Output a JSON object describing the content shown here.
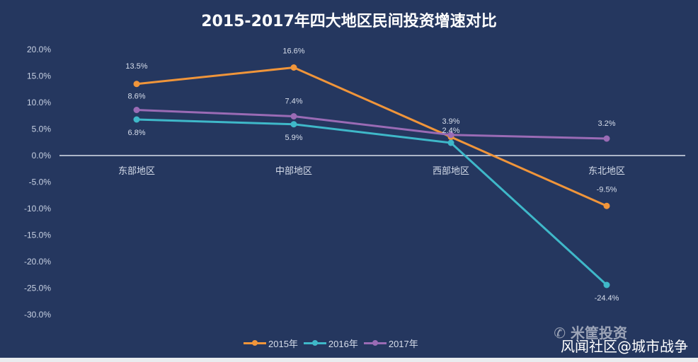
{
  "chart_data": {
    "type": "line",
    "title": "2015-2017年四大地区民间投资增速对比",
    "categories": [
      "东部地区",
      "中部地区",
      "西部地区",
      "东北地区"
    ],
    "series": [
      {
        "name": "2015年",
        "color": "#f0953a",
        "values": [
          13.5,
          16.6,
          3.5,
          -9.5
        ],
        "labels": [
          "13.5%",
          "16.6%",
          "",
          "-9.5%"
        ]
      },
      {
        "name": "2016年",
        "color": "#3fb8c9",
        "values": [
          6.8,
          5.9,
          2.4,
          -24.4
        ],
        "labels": [
          "6.8%",
          "5.9%",
          "2.4%",
          "-24.4%"
        ]
      },
      {
        "name": "2017年",
        "color": "#9a6bb5",
        "values": [
          8.6,
          7.4,
          3.9,
          3.2
        ],
        "labels": [
          "8.6%",
          "7.4%",
          "3.9%",
          "3.2%"
        ]
      }
    ],
    "yticks": [
      "20.0%",
      "15.0%",
      "10.0%",
      "5.0%",
      "0.0%",
      "-5.0%",
      "-10.0%",
      "-15.0%",
      "-20.0%",
      "-25.0%",
      "-30.0%"
    ],
    "ylim": [
      -30,
      20
    ],
    "legend": "bottom"
  },
  "watermark": "米筐投资",
  "credit": "风闻社区@城市战争"
}
